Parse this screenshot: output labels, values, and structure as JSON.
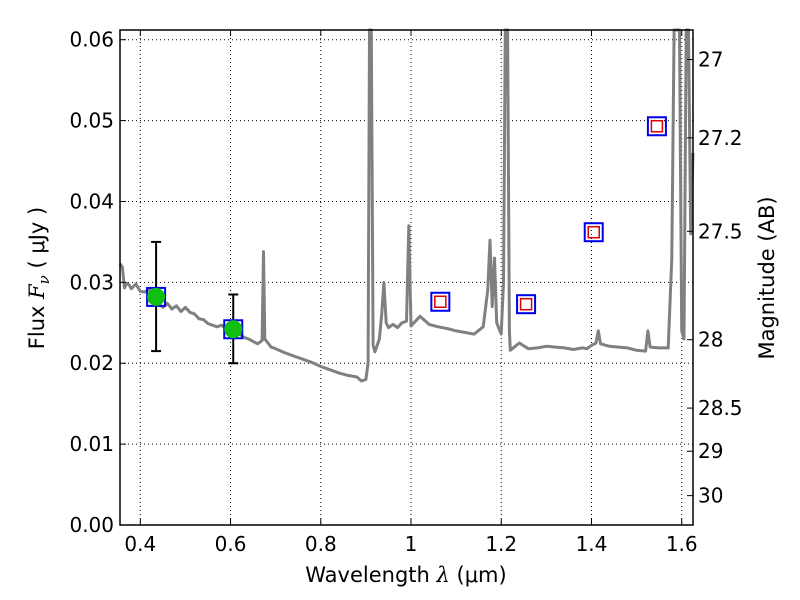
{
  "chart_data": {
    "type": "line",
    "xlabel_prefix": "Wavelength  ",
    "xlabel_symbol": "λ",
    "xlabel_unit": " (μm)",
    "ylabel_prefix": "Flux  ",
    "ylabel_symbol": "F",
    "ylabel_subscript": "ν",
    "ylabel_unit": "  ( μJy )",
    "y2label": "Magnitude (AB)",
    "xlim": [
      0.355,
      1.625
    ],
    "ylim": [
      0.0,
      0.0612
    ],
    "grid": true,
    "x_ticks": [
      {
        "value": 0.4,
        "label": "0.4"
      },
      {
        "value": 0.6,
        "label": "0.6"
      },
      {
        "value": 0.8,
        "label": "0.8"
      },
      {
        "value": 1.0,
        "label": "1"
      },
      {
        "value": 1.2,
        "label": "1.2"
      },
      {
        "value": 1.4,
        "label": "1.4"
      },
      {
        "value": 1.6,
        "label": "1.6"
      }
    ],
    "y_ticks": [
      {
        "value": 0.0,
        "label": "0.00"
      },
      {
        "value": 0.01,
        "label": "0.01"
      },
      {
        "value": 0.02,
        "label": "0.02"
      },
      {
        "value": 0.03,
        "label": "0.03"
      },
      {
        "value": 0.04,
        "label": "0.04"
      },
      {
        "value": 0.05,
        "label": "0.05"
      },
      {
        "value": 0.06,
        "label": "0.06"
      }
    ],
    "mag_ticks": [
      {
        "value": 27,
        "label": "27"
      },
      {
        "value": 27.2,
        "label": "27.2"
      },
      {
        "value": 27.5,
        "label": "27.5"
      },
      {
        "value": 28,
        "label": "28"
      },
      {
        "value": 28.5,
        "label": "28.5"
      },
      {
        "value": 29,
        "label": "29"
      },
      {
        "value": 30,
        "label": "30"
      }
    ],
    "series": [
      {
        "kind": "sed-model",
        "color": "#808080",
        "points": [
          [
            0.355,
            0.0323
          ],
          [
            0.36,
            0.0319
          ],
          [
            0.365,
            0.0293
          ],
          [
            0.37,
            0.0299
          ],
          [
            0.375,
            0.0297
          ],
          [
            0.38,
            0.0292
          ],
          [
            0.39,
            0.0298
          ],
          [
            0.4,
            0.0289
          ],
          [
            0.41,
            0.0288
          ],
          [
            0.42,
            0.0292
          ],
          [
            0.43,
            0.0278
          ],
          [
            0.44,
            0.0274
          ],
          [
            0.45,
            0.0269
          ],
          [
            0.46,
            0.0274
          ],
          [
            0.47,
            0.0267
          ],
          [
            0.48,
            0.0271
          ],
          [
            0.49,
            0.0264
          ],
          [
            0.5,
            0.0269
          ],
          [
            0.51,
            0.0263
          ],
          [
            0.52,
            0.0261
          ],
          [
            0.53,
            0.0255
          ],
          [
            0.54,
            0.0254
          ],
          [
            0.55,
            0.0249
          ],
          [
            0.56,
            0.0247
          ],
          [
            0.57,
            0.0245
          ],
          [
            0.58,
            0.0247
          ],
          [
            0.59,
            0.0243
          ],
          [
            0.6,
            0.0241
          ],
          [
            0.61,
            0.0239
          ],
          [
            0.62,
            0.0236
          ],
          [
            0.63,
            0.0232
          ],
          [
            0.64,
            0.023
          ],
          [
            0.65,
            0.0227
          ],
          [
            0.66,
            0.0224
          ],
          [
            0.67,
            0.0228
          ],
          [
            0.673,
            0.0338
          ],
          [
            0.676,
            0.023
          ],
          [
            0.69,
            0.022
          ],
          [
            0.7,
            0.0218
          ],
          [
            0.72,
            0.0213
          ],
          [
            0.74,
            0.0209
          ],
          [
            0.76,
            0.0205
          ],
          [
            0.78,
            0.0201
          ],
          [
            0.8,
            0.0196
          ],
          [
            0.82,
            0.0192
          ],
          [
            0.84,
            0.0188
          ],
          [
            0.86,
            0.0185
          ],
          [
            0.88,
            0.0183
          ],
          [
            0.89,
            0.0178
          ],
          [
            0.9,
            0.018
          ],
          [
            0.905,
            0.02
          ],
          [
            0.908,
            0.0612
          ],
          [
            0.912,
            0.0612
          ],
          [
            0.916,
            0.0222
          ],
          [
            0.92,
            0.0214
          ],
          [
            0.93,
            0.023
          ],
          [
            0.935,
            0.026
          ],
          [
            0.94,
            0.03
          ],
          [
            0.945,
            0.025
          ],
          [
            0.95,
            0.0244
          ],
          [
            0.96,
            0.0248
          ],
          [
            0.97,
            0.0244
          ],
          [
            0.98,
            0.025
          ],
          [
            0.99,
            0.0252
          ],
          [
            0.995,
            0.037
          ],
          [
            1.0,
            0.0246
          ],
          [
            1.02,
            0.0258
          ],
          [
            1.04,
            0.0248
          ],
          [
            1.06,
            0.0245
          ],
          [
            1.08,
            0.0243
          ],
          [
            1.1,
            0.024
          ],
          [
            1.12,
            0.0238
          ],
          [
            1.14,
            0.0236
          ],
          [
            1.16,
            0.0245
          ],
          [
            1.17,
            0.029
          ],
          [
            1.175,
            0.0352
          ],
          [
            1.18,
            0.027
          ],
          [
            1.185,
            0.033
          ],
          [
            1.19,
            0.025
          ],
          [
            1.2,
            0.0236
          ],
          [
            1.205,
            0.03
          ],
          [
            1.209,
            0.0612
          ],
          [
            1.214,
            0.0612
          ],
          [
            1.218,
            0.024
          ],
          [
            1.22,
            0.0216
          ],
          [
            1.24,
            0.0225
          ],
          [
            1.26,
            0.0218
          ],
          [
            1.28,
            0.0219
          ],
          [
            1.3,
            0.0221
          ],
          [
            1.32,
            0.022
          ],
          [
            1.34,
            0.0219
          ],
          [
            1.36,
            0.0217
          ],
          [
            1.38,
            0.0219
          ],
          [
            1.39,
            0.0218
          ],
          [
            1.4,
            0.0222
          ],
          [
            1.41,
            0.0225
          ],
          [
            1.415,
            0.024
          ],
          [
            1.42,
            0.0224
          ],
          [
            1.44,
            0.0221
          ],
          [
            1.46,
            0.022
          ],
          [
            1.48,
            0.0219
          ],
          [
            1.5,
            0.0216
          ],
          [
            1.52,
            0.0215
          ],
          [
            1.525,
            0.024
          ],
          [
            1.53,
            0.022
          ],
          [
            1.55,
            0.0219
          ],
          [
            1.57,
            0.0219
          ],
          [
            1.578,
            0.033
          ],
          [
            1.583,
            0.0612
          ],
          [
            1.59,
            0.0612
          ],
          [
            1.595,
            0.0612
          ],
          [
            1.6,
            0.024
          ],
          [
            1.605,
            0.023
          ],
          [
            1.61,
            0.0612
          ],
          [
            1.615,
            0.0612
          ],
          [
            1.62,
            0.036
          ],
          [
            1.625,
            0.046
          ]
        ]
      },
      {
        "kind": "observed",
        "fill": "#10c010",
        "points": [
          {
            "x": 0.435,
            "y": 0.0282,
            "yerr_low": 0.0215,
            "yerr_high": 0.035
          },
          {
            "x": 0.606,
            "y": 0.0242,
            "yerr_low": 0.02,
            "yerr_high": 0.0285
          }
        ]
      },
      {
        "kind": "model-photometry",
        "edge": "#0000ee",
        "points": [
          {
            "x": 0.435,
            "y": 0.0282
          },
          {
            "x": 0.606,
            "y": 0.0242
          },
          {
            "x": 1.065,
            "y": 0.0276
          },
          {
            "x": 1.255,
            "y": 0.0273
          },
          {
            "x": 1.405,
            "y": 0.0362
          },
          {
            "x": 1.545,
            "y": 0.0493
          }
        ]
      },
      {
        "kind": "upper-limit-marker",
        "edge": "#dd0000",
        "points": [
          {
            "x": 1.065,
            "y": 0.0276
          },
          {
            "x": 1.255,
            "y": 0.0273
          },
          {
            "x": 1.405,
            "y": 0.0362
          },
          {
            "x": 1.545,
            "y": 0.0493
          }
        ]
      }
    ]
  }
}
